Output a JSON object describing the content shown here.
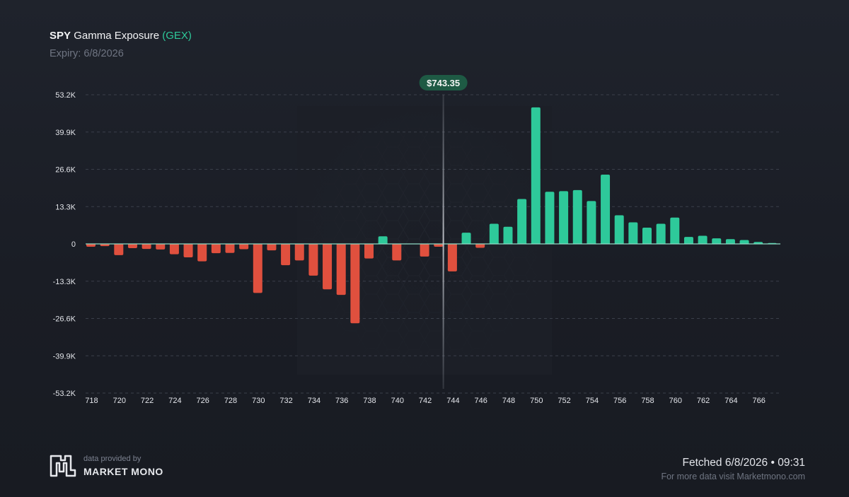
{
  "header": {
    "ticker": "SPY",
    "title": "Gamma Exposure",
    "tag": "(GEX)",
    "expiry": "Expiry: 6/8/2026"
  },
  "chart_data": {
    "type": "bar",
    "categories": [
      718,
      719,
      720,
      721,
      722,
      723,
      724,
      725,
      726,
      727,
      728,
      729,
      730,
      731,
      732,
      733,
      734,
      735,
      736,
      737,
      738,
      739,
      740,
      741,
      742,
      743,
      744,
      745,
      746,
      747,
      748,
      749,
      750,
      751,
      752,
      753,
      754,
      755,
      756,
      757,
      758,
      759,
      760,
      761,
      762,
      763,
      764,
      765,
      766,
      767
    ],
    "values": [
      -1000,
      -800,
      -4000,
      -1500,
      -1800,
      -2000,
      -3700,
      -4800,
      -6200,
      -3300,
      -3200,
      -1900,
      -17500,
      -2300,
      -7600,
      -5900,
      -11300,
      -16200,
      -18200,
      -28300,
      -5200,
      2700,
      -5900,
      0,
      -4500,
      -1000,
      -9800,
      4000,
      -1400,
      7200,
      6100,
      16000,
      48700,
      18600,
      18800,
      19200,
      15300,
      24700,
      10200,
      7700,
      5800,
      7200,
      9400,
      2500,
      2900,
      2000,
      1700,
      1400,
      700,
      300
    ],
    "xticks": [
      "718",
      "720",
      "722",
      "724",
      "726",
      "728",
      "730",
      "732",
      "734",
      "736",
      "738",
      "740",
      "742",
      "744",
      "746",
      "748",
      "750",
      "752",
      "754",
      "756",
      "758",
      "760",
      "762",
      "764",
      "766"
    ],
    "yticks": [
      "53.2K",
      "39.9K",
      "26.6K",
      "13.3K",
      "0",
      "-13.3K",
      "-26.6K",
      "-39.9K",
      "-53.2K"
    ],
    "ylim": [
      -53200,
      53200
    ],
    "spot": 743.35,
    "spot_label": "$743.35",
    "positive_color": "#2ec99a",
    "negative_color": "#e0503e",
    "grid": "dashed horizontal"
  },
  "footer": {
    "provided_by": "data provided by",
    "brand": "MARKET MONO",
    "fetched": "Fetched 6/8/2026 • 09:31",
    "more": "For more data visit Marketmono.com"
  }
}
